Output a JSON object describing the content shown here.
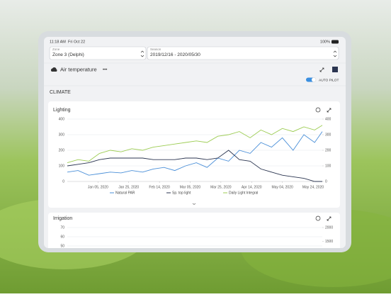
{
  "status_bar": {
    "time": "11:18 AM",
    "date": "Fri Oct 22",
    "battery": "100%"
  },
  "filters": {
    "zone_label": "Zone",
    "zone": "Zone 3 (Delphi)",
    "season_label": "Season",
    "season": "2019/12/16 - 2020/05/30"
  },
  "sensor": "Air temperature",
  "menu": "•••",
  "autopilot": "AUTO PILOT",
  "section": "CLIMATE",
  "chart_data": [
    {
      "type": "line",
      "title": "Lighting",
      "x": [
        "2019-12-16",
        "2019-12-23",
        "2019-12-30",
        "2020-01-06",
        "2020-01-13",
        "2020-01-20",
        "2020-01-27",
        "2020-02-03",
        "2020-02-10",
        "2020-02-17",
        "2020-02-24",
        "2020-03-02",
        "2020-03-09",
        "2020-03-16",
        "2020-03-23",
        "2020-03-30",
        "2020-04-06",
        "2020-04-13",
        "2020-04-20",
        "2020-04-27",
        "2020-05-04",
        "2020-05-11",
        "2020-05-18",
        "2020-05-25",
        "2020-05-30"
      ],
      "xlim": [
        "2019-12-16",
        "2020-05-30"
      ],
      "xticks": [
        {
          "value": "2020-01-05",
          "label": "Jan 05, 2020"
        },
        {
          "value": "2020-01-25",
          "label": "Jan 25, 2020"
        },
        {
          "value": "2020-02-14",
          "label": "Feb 14, 2020"
        },
        {
          "value": "2020-03-05",
          "label": "Mar 05, 2020"
        },
        {
          "value": "2020-03-25",
          "label": "Mar 25, 2020"
        },
        {
          "value": "2020-04-14",
          "label": "Apr 14, 2020"
        },
        {
          "value": "2020-05-04",
          "label": "May 04, 2020"
        },
        {
          "value": "2020-05-24",
          "label": "May 24, 2020"
        }
      ],
      "ylim": [
        0,
        400
      ],
      "yticks": [
        0,
        100,
        200,
        300,
        400
      ],
      "y2lim": [
        0,
        400
      ],
      "y2ticks": [
        0,
        100,
        200,
        300,
        400
      ],
      "grid": true,
      "series": [
        {
          "name": "Natural PAR",
          "color": "#4a8fd8",
          "values": [
            60,
            70,
            40,
            50,
            60,
            55,
            70,
            60,
            80,
            90,
            70,
            100,
            120,
            90,
            150,
            130,
            200,
            180,
            250,
            220,
            280,
            200,
            300,
            250,
            320
          ]
        },
        {
          "name": "Sp. top light",
          "color": "#2b3550",
          "values": [
            100,
            110,
            120,
            140,
            150,
            150,
            150,
            150,
            140,
            140,
            140,
            150,
            150,
            140,
            150,
            200,
            140,
            130,
            80,
            60,
            40,
            30,
            20,
            0,
            0
          ]
        },
        {
          "name": "Daily Light Integral",
          "color": "#9ccc52",
          "axis": "y2",
          "values": [
            120,
            140,
            130,
            180,
            200,
            190,
            210,
            200,
            220,
            230,
            240,
            250,
            260,
            250,
            290,
            300,
            320,
            280,
            330,
            300,
            340,
            320,
            350,
            330,
            360
          ]
        }
      ]
    },
    {
      "type": "line",
      "title": "Irrigation",
      "ylim": [
        40,
        70
      ],
      "yticks": [
        50,
        60,
        70
      ],
      "y2lim": [
        1000,
        2000
      ],
      "y2ticks": [
        1500,
        2000
      ]
    }
  ]
}
